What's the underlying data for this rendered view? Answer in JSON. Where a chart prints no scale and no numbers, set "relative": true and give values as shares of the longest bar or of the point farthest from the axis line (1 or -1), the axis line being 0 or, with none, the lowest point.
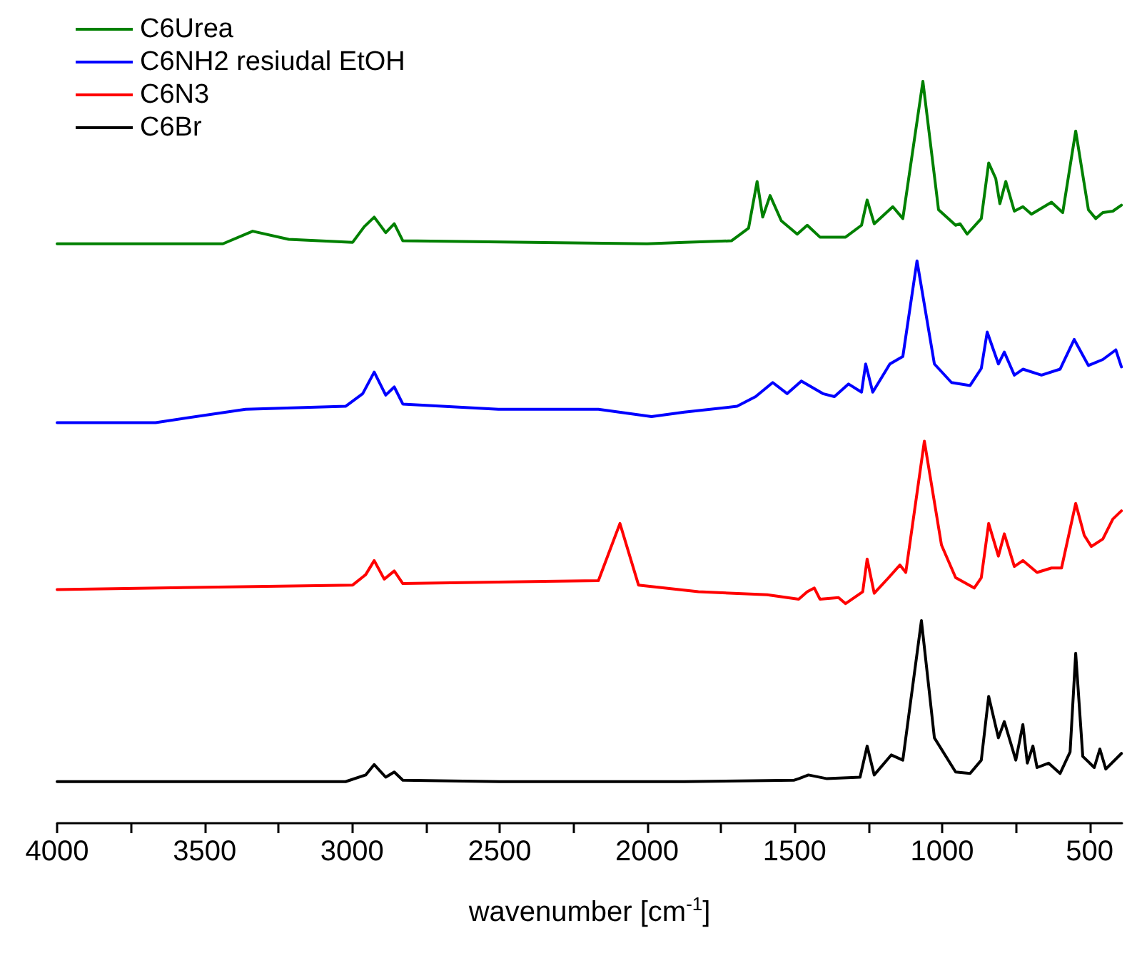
{
  "chart_data": {
    "type": "line",
    "xlabel": "wavenumber [cm$^{-1}$]",
    "relative": true,
    "legend": "top left",
    "grid": false,
    "marker": "none",
    "line_style": "solid",
    "xlim": [
      4000,
      390
    ],
    "xticks": [
      4000,
      {
        "value": 3750,
        "label": null
      },
      3500,
      {
        "value": 3250,
        "label": null
      },
      3000,
      {
        "value": 2750,
        "label": null
      },
      2500,
      {
        "value": 2250,
        "label": null
      },
      2000,
      {
        "value": 1750,
        "label": null
      },
      1500,
      {
        "value": 1250,
        "label": null
      },
      1000,
      {
        "value": 750,
        "label": null
      },
      500
    ],
    "series": [
      {
        "name": "C6Urea",
        "color": "#008000",
        "x": [
          4000,
          3438,
          3337,
          3215,
          2998,
          2959,
          2925,
          2886,
          2857,
          2828,
          2000,
          1874,
          1714,
          1656,
          1627,
          1608,
          1583,
          1545,
          1491,
          1457,
          1414,
          1327,
          1273,
          1254,
          1230,
          1167,
          1133,
          1065,
          1012,
          954,
          939,
          915,
          867,
          842,
          818,
          804,
          784,
          755,
          726,
          697,
          629,
          591,
          547,
          504,
          479,
          455,
          421,
          392
        ],
        "values": [
          0.781,
          0.781,
          0.798,
          0.787,
          0.783,
          0.804,
          0.817,
          0.796,
          0.808,
          0.785,
          0.781,
          0.783,
          0.785,
          0.802,
          0.865,
          0.817,
          0.846,
          0.812,
          0.794,
          0.806,
          0.79,
          0.79,
          0.806,
          0.84,
          0.808,
          0.831,
          0.815,
          1.0,
          0.827,
          0.806,
          0.808,
          0.794,
          0.815,
          0.89,
          0.869,
          0.835,
          0.865,
          0.825,
          0.831,
          0.821,
          0.837,
          0.823,
          0.933,
          0.827,
          0.815,
          0.823,
          0.825,
          0.833
        ]
      },
      {
        "name": "C6NH2 resiudal EtOH",
        "color": "#0000ff",
        "x": [
          4000,
          3666,
          3361,
          3022,
          2964,
          2925,
          2886,
          2857,
          2828,
          2504,
          2165,
          1985,
          1874,
          1695,
          1632,
          1574,
          1525,
          1477,
          1404,
          1365,
          1317,
          1273,
          1259,
          1235,
          1177,
          1133,
          1085,
          1026,
          968,
          905,
          867,
          847,
          809,
          789,
          755,
          726,
          663,
          600,
          552,
          504,
          455,
          411,
          392
        ],
        "values": [
          0.54,
          0.54,
          0.558,
          0.562,
          0.579,
          0.608,
          0.577,
          0.588,
          0.565,
          0.558,
          0.558,
          0.548,
          0.554,
          0.562,
          0.575,
          0.594,
          0.579,
          0.596,
          0.579,
          0.575,
          0.592,
          0.581,
          0.619,
          0.581,
          0.619,
          0.629,
          0.758,
          0.619,
          0.594,
          0.59,
          0.613,
          0.662,
          0.619,
          0.635,
          0.604,
          0.612,
          0.604,
          0.612,
          0.652,
          0.617,
          0.625,
          0.638,
          0.615
        ]
      },
      {
        "name": "C6N3",
        "color": "#ff0000",
        "x": [
          4000,
          2998,
          2954,
          2925,
          2891,
          2857,
          2828,
          2165,
          2092,
          2029,
          1826,
          1593,
          1486,
          1457,
          1433,
          1414,
          1351,
          1327,
          1269,
          1254,
          1230,
          1181,
          1143,
          1123,
          1060,
          1002,
          954,
          891,
          867,
          842,
          809,
          789,
          755,
          726,
          678,
          629,
          595,
          547,
          518,
          494,
          455,
          421,
          392
        ],
        "values": [
          0.315,
          0.321,
          0.335,
          0.354,
          0.329,
          0.34,
          0.323,
          0.327,
          0.404,
          0.321,
          0.312,
          0.308,
          0.302,
          0.312,
          0.317,
          0.302,
          0.304,
          0.296,
          0.312,
          0.356,
          0.31,
          0.331,
          0.348,
          0.338,
          0.515,
          0.375,
          0.331,
          0.317,
          0.331,
          0.404,
          0.36,
          0.39,
          0.346,
          0.354,
          0.338,
          0.344,
          0.344,
          0.431,
          0.388,
          0.373,
          0.383,
          0.41,
          0.421
        ]
      },
      {
        "name": "C6Br",
        "color": "#000000",
        "x": [
          4000,
          3022,
          2954,
          2925,
          2886,
          2857,
          2828,
          2500,
          1874,
          1501,
          1486,
          1453,
          1390,
          1278,
          1254,
          1230,
          1172,
          1133,
          1070,
          1026,
          954,
          905,
          867,
          842,
          809,
          789,
          750,
          726,
          711,
          692,
          678,
          639,
          600,
          566,
          547,
          523,
          484,
          465,
          445,
          392
        ],
        "values": [
          0.056,
          0.056,
          0.065,
          0.079,
          0.062,
          0.069,
          0.058,
          0.056,
          0.056,
          0.058,
          0.06,
          0.065,
          0.06,
          0.062,
          0.104,
          0.065,
          0.092,
          0.085,
          0.273,
          0.115,
          0.069,
          0.067,
          0.085,
          0.171,
          0.115,
          0.137,
          0.085,
          0.133,
          0.081,
          0.104,
          0.075,
          0.081,
          0.067,
          0.096,
          0.229,
          0.09,
          0.075,
          0.1,
          0.073,
          0.094
        ]
      }
    ]
  }
}
